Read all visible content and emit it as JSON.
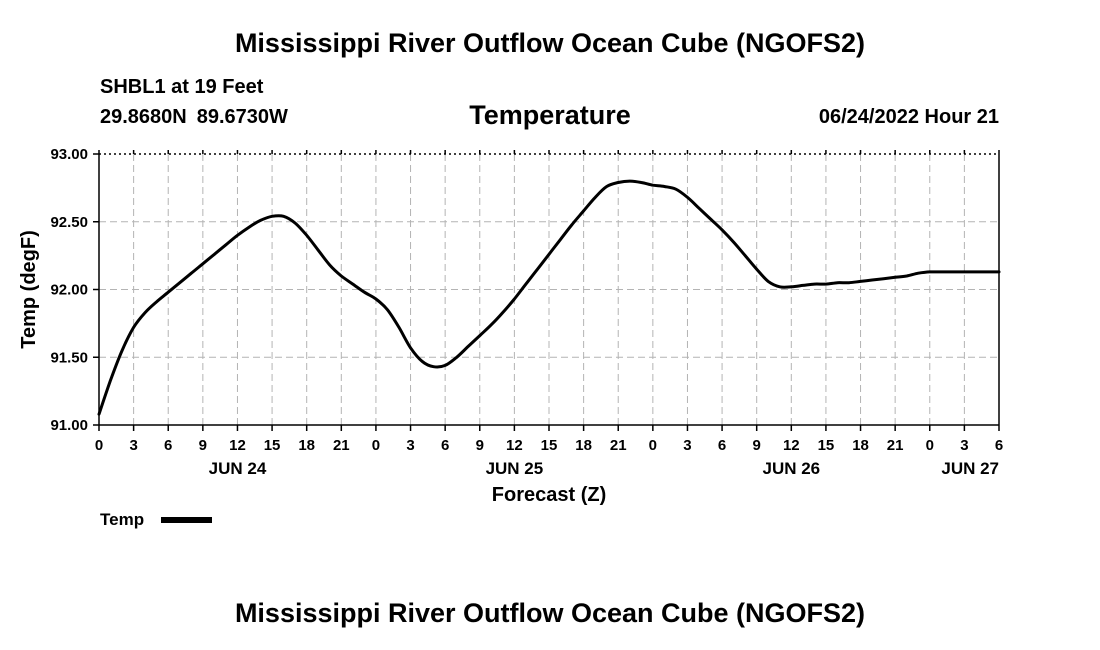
{
  "header": {
    "main_title": "Mississippi River Outflow Ocean Cube (NGOFS2)",
    "station": "SHBL1 at 19 Feet",
    "latitude": "29.8680N",
    "longitude": "89.6730W",
    "plot_title": "Temperature",
    "run_time": "06/24/2022 Hour 21"
  },
  "footer": {
    "title": "Mississippi River Outflow Ocean Cube (NGOFS2)"
  },
  "chart_data": {
    "type": "line",
    "ylabel": "Temp (degF)",
    "xlabel": "Forecast (Z)",
    "ylim": [
      91.0,
      93.0
    ],
    "yticks": [
      "91.00",
      "91.50",
      "92.00",
      "92.50",
      "93.00"
    ],
    "xlim_hours": [
      0,
      78
    ],
    "xtick_labels": [
      "0",
      "3",
      "6",
      "9",
      "12",
      "15",
      "18",
      "21",
      "0",
      "3",
      "6",
      "9",
      "12",
      "15",
      "18",
      "21",
      "0",
      "3",
      "6",
      "9",
      "12",
      "15",
      "18",
      "21",
      "0",
      "3",
      "6"
    ],
    "day_labels": [
      {
        "label": "JUN 24",
        "hour": 12
      },
      {
        "label": "JUN 25",
        "hour": 36
      },
      {
        "label": "JUN 26",
        "hour": 60
      },
      {
        "label": "JUN 27",
        "hour": 78
      }
    ],
    "grid": true,
    "legend": "bottom-left",
    "series": [
      {
        "name": "Temp",
        "color": "#000000",
        "x": [
          0,
          1,
          2,
          3,
          4,
          5,
          6,
          7,
          8,
          9,
          10,
          11,
          12,
          13,
          14,
          15,
          16,
          17,
          18,
          19,
          20,
          21,
          22,
          23,
          24,
          25,
          26,
          27,
          28,
          29,
          30,
          31,
          32,
          33,
          34,
          35,
          36,
          37,
          38,
          39,
          40,
          41,
          42,
          43,
          44,
          45,
          46,
          47,
          48,
          49,
          50,
          51,
          52,
          53,
          54,
          55,
          56,
          57,
          58,
          59,
          60,
          61,
          62,
          63,
          64,
          65,
          66,
          67,
          68,
          69,
          70,
          71,
          72,
          73,
          74,
          75,
          76,
          77,
          78
        ],
        "values": [
          91.08,
          91.33,
          91.55,
          91.72,
          91.83,
          91.91,
          91.98,
          92.05,
          92.12,
          92.19,
          92.26,
          92.33,
          92.4,
          92.46,
          92.51,
          92.54,
          92.54,
          92.49,
          92.4,
          92.29,
          92.18,
          92.1,
          92.04,
          91.98,
          91.93,
          91.85,
          91.72,
          91.57,
          91.47,
          91.43,
          91.44,
          91.5,
          91.58,
          91.66,
          91.74,
          91.83,
          91.93,
          92.04,
          92.15,
          92.26,
          92.37,
          92.48,
          92.58,
          92.68,
          92.76,
          92.79,
          92.8,
          92.79,
          92.77,
          92.76,
          92.74,
          92.68,
          92.6,
          92.52,
          92.44,
          92.35,
          92.25,
          92.15,
          92.06,
          92.02,
          92.02,
          92.03,
          92.04,
          92.04,
          92.05,
          92.05,
          92.06,
          92.07,
          92.08,
          92.09,
          92.1,
          92.12,
          92.13,
          92.13,
          92.13,
          92.13,
          92.13,
          92.13,
          92.13
        ]
      }
    ]
  }
}
